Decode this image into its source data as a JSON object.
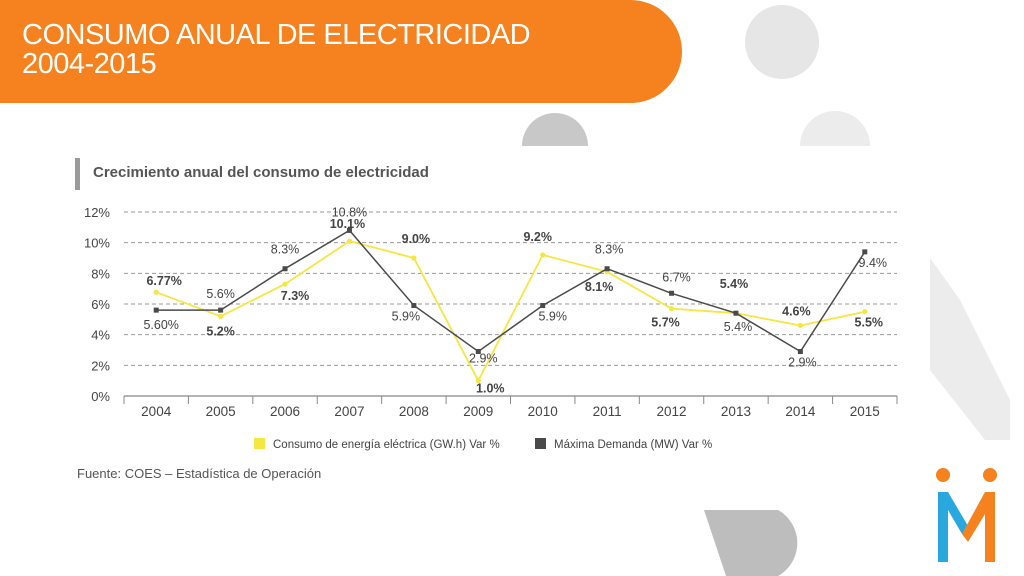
{
  "header": {
    "title_line1": "CONSUMO ANUAL DE ELECTRICIDAD",
    "title_line2": "2004-2015"
  },
  "colors": {
    "banner": "#f5821f",
    "series_consumo": "#f5e642",
    "series_demanda": "#4a4a4a",
    "logo_orange": "#f5821f",
    "logo_blue": "#29a8e0",
    "decor_gray": "#e6e6e6"
  },
  "icons": {
    "logo": "logo-icon"
  },
  "chart_data": {
    "type": "line",
    "title": "Crecimiento anual del consumo de electricidad",
    "categories": [
      "2004",
      "2005",
      "2006",
      "2007",
      "2008",
      "2009",
      "2010",
      "2011",
      "2012",
      "2013",
      "2014",
      "2015"
    ],
    "yticks": [
      "0%",
      "2%",
      "4%",
      "6%",
      "8%",
      "10%",
      "12%"
    ],
    "ylim": [
      0,
      12
    ],
    "grid": true,
    "legend_position": "bottom",
    "series": [
      {
        "name": "Consumo de energía eléctrica (GW.h) Var %",
        "values": [
          6.77,
          5.2,
          7.3,
          10.1,
          9.0,
          1.0,
          9.2,
          8.1,
          5.7,
          5.4,
          4.6,
          5.5
        ],
        "labels": [
          "6.77%",
          "5.2%",
          "7.3%",
          "10.1%",
          "9.0%",
          "1.0%",
          "9.2%",
          "8.1%",
          "5.7%",
          "5.4%",
          "4.6%",
          "5.5%"
        ]
      },
      {
        "name": "Máxima Demanda (MW) Var %",
        "values": [
          5.6,
          5.6,
          8.3,
          10.8,
          5.9,
          2.9,
          5.9,
          8.3,
          6.7,
          5.4,
          2.9,
          9.4
        ],
        "labels": [
          "5.60%",
          "5.6%",
          "8.3%",
          "10.8%",
          "5.9%",
          "2.9%",
          "5.9%",
          "8.3%",
          "6.7%",
          "5.4%",
          "2.9%",
          "9.4%"
        ]
      }
    ],
    "source": "Fuente: COES – Estadística de Operación"
  }
}
